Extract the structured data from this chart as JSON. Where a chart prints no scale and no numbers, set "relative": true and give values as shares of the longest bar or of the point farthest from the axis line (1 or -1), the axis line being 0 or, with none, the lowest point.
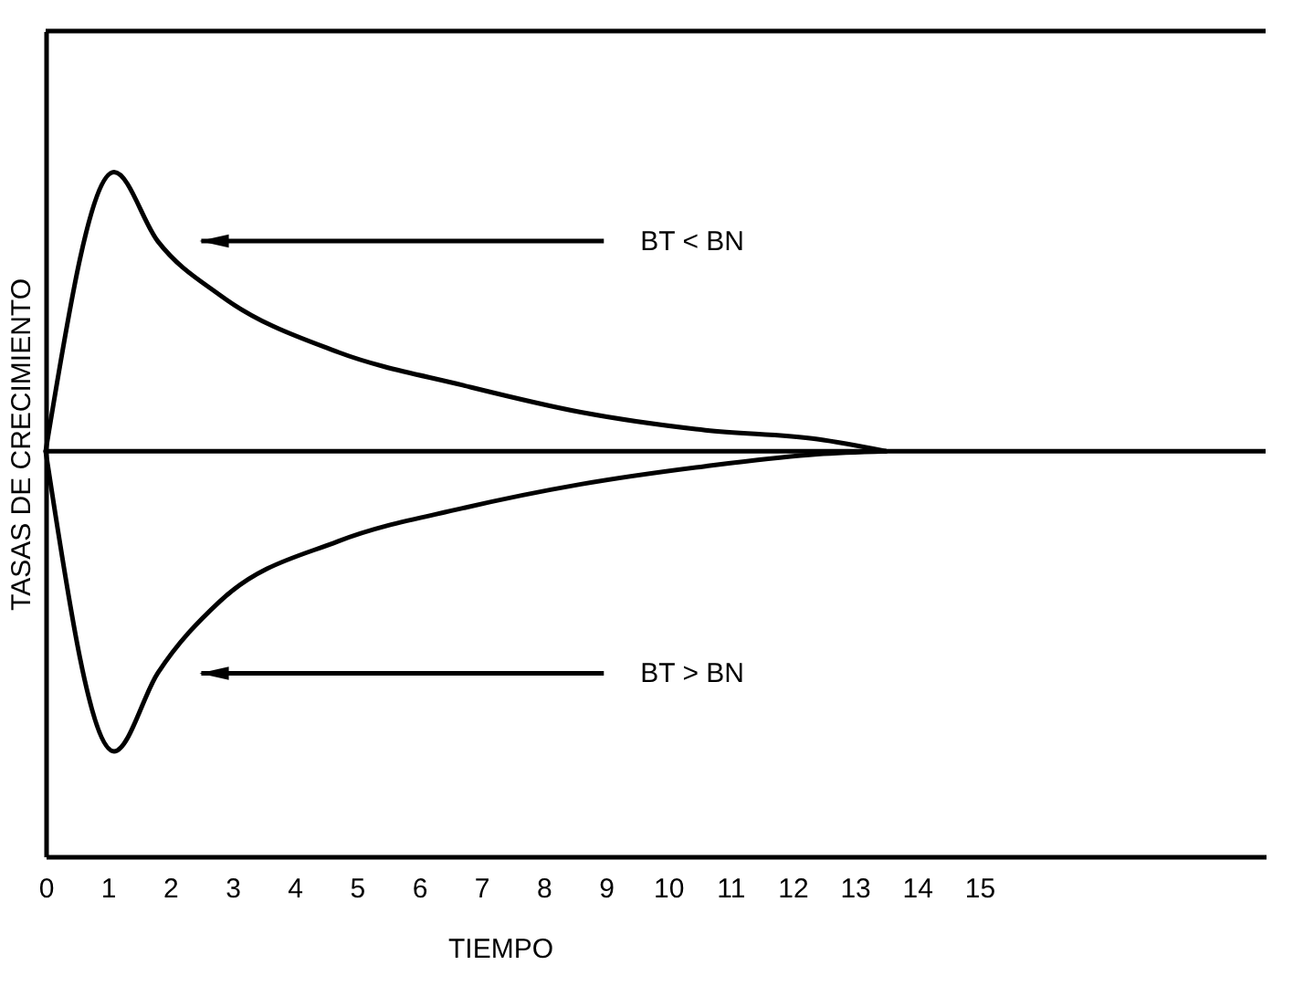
{
  "chart_data": {
    "type": "line",
    "relative": true,
    "xlabel": "TIEMPO",
    "ylabel": "TASAS DE CRECIMIENTO",
    "xlim": [
      0,
      19.6
    ],
    "xticks": [
      0,
      1,
      2,
      3,
      4,
      5,
      6,
      7,
      8,
      9,
      10,
      11,
      12,
      13,
      14,
      15
    ],
    "series": [
      {
        "color": "#000000",
        "x": [
          0,
          1.1,
          1.8,
          2.8,
          4.7,
          6.7,
          8.6,
          10.6,
          12.4,
          13.5
        ],
        "values": [
          0,
          0.93,
          0.7,
          0.52,
          0.33,
          0.22,
          0.13,
          0.07,
          0.04,
          0
        ]
      },
      {
        "color": "#000000",
        "x": [
          0,
          1.1,
          1.8,
          2.8,
          4.7,
          6.7,
          8.6,
          10.6,
          12.4,
          13.5
        ],
        "values": [
          0,
          -1,
          -0.74,
          -0.5,
          -0.3,
          -0.19,
          -0.11,
          -0.05,
          -0.01,
          0
        ]
      }
    ],
    "ref_lines": [
      {
        "axis": "y",
        "value": 0,
        "color": "#000000"
      }
    ],
    "annotations": [
      "BT < BN",
      "BT > BN"
    ],
    "grid": false,
    "marker": "none",
    "line_style": "solid"
  }
}
